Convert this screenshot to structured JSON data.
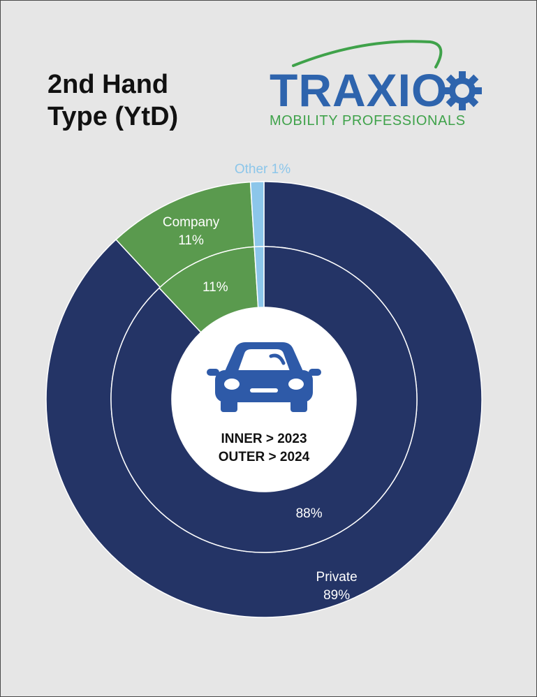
{
  "title": {
    "line1": "2nd Hand",
    "line2": "Type (YtD)"
  },
  "logo": {
    "word": "TRAXIO",
    "tagline": "MOBILITY PROFESSIONALS",
    "icon": "gear-icon"
  },
  "center": {
    "icon": "car-icon",
    "line1": "INNER > 2023",
    "line2": "OUTER > 2024"
  },
  "colors": {
    "private": "#243466",
    "company": "#5a9a4e",
    "other": "#8cc6ea",
    "other_label": "#8cc6ea",
    "background": "#e6e6e6",
    "car": "#2e5aa8",
    "logo_blue": "#2e64ad",
    "logo_green": "#3fa24a"
  },
  "chart_data": {
    "type": "pie",
    "variant": "donut",
    "series": [
      {
        "ring": "outer",
        "year": "2024",
        "slices": [
          {
            "key": "other",
            "label": "Other",
            "value": 1,
            "display": "Other 1%"
          },
          {
            "key": "company",
            "label": "Company",
            "value": 11,
            "display": "11%"
          },
          {
            "key": "private",
            "label": "Private",
            "value": 89,
            "display": "89%"
          }
        ]
      },
      {
        "ring": "inner",
        "year": "2023",
        "slices": [
          {
            "key": "other",
            "value": 1
          },
          {
            "key": "company",
            "value": 11,
            "display": "11%"
          },
          {
            "key": "private",
            "value": 88,
            "display": "88%"
          }
        ]
      }
    ]
  }
}
